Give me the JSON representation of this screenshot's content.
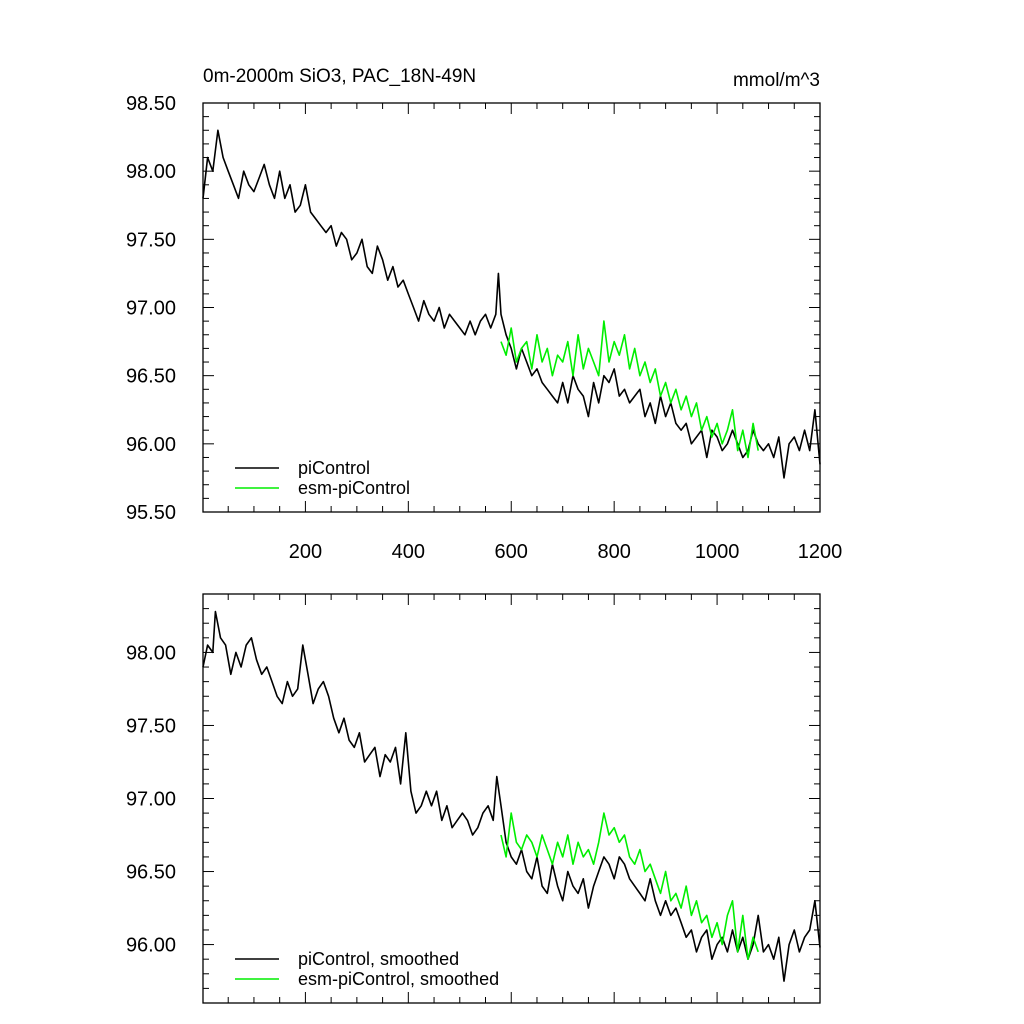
{
  "title": "0m-2000m SiO3, PAC_18N-49N",
  "units": "mmol/m^3",
  "colors": {
    "piControl": "#000000",
    "esm-piControl": "#00ee00",
    "axis": "#000000"
  },
  "chart_data": [
    {
      "type": "line",
      "panel": "top",
      "title": "0m-2000m SiO3, PAC_18N-49N",
      "units": "mmol/m^3",
      "xlim": [
        1,
        1200
      ],
      "ylim": [
        95.5,
        98.5
      ],
      "xticks": [
        200,
        400,
        600,
        800,
        1000,
        1200
      ],
      "xticklabels": [
        "200",
        "400",
        "600",
        "800",
        "1000",
        "1200"
      ],
      "yticks": [
        95.5,
        96.0,
        96.5,
        97.0,
        97.5,
        98.0,
        98.5
      ],
      "yticklabels": [
        "95.50",
        "96.00",
        "96.50",
        "97.00",
        "97.50",
        "98.00",
        "98.50"
      ],
      "legend_position": "bottom-left",
      "series": [
        {
          "name": "piControl",
          "color": "#000000",
          "x": [
            1,
            10,
            20,
            30,
            40,
            50,
            60,
            70,
            80,
            90,
            100,
            110,
            120,
            130,
            140,
            150,
            160,
            170,
            180,
            190,
            200,
            210,
            220,
            230,
            240,
            250,
            260,
            270,
            280,
            290,
            300,
            310,
            320,
            330,
            340,
            350,
            360,
            370,
            380,
            390,
            400,
            410,
            420,
            430,
            440,
            450,
            460,
            470,
            480,
            490,
            500,
            510,
            520,
            530,
            540,
            550,
            560,
            570,
            575,
            580,
            590,
            600,
            610,
            620,
            630,
            640,
            650,
            660,
            670,
            680,
            690,
            700,
            710,
            720,
            730,
            740,
            750,
            760,
            770,
            780,
            790,
            800,
            810,
            820,
            830,
            840,
            850,
            860,
            870,
            880,
            890,
            900,
            910,
            920,
            930,
            940,
            950,
            960,
            970,
            980,
            990,
            1000,
            1010,
            1020,
            1030,
            1040,
            1050,
            1060,
            1070,
            1080,
            1090,
            1100,
            1110,
            1120,
            1130,
            1140,
            1150,
            1160,
            1170,
            1180,
            1190,
            1200
          ],
          "y": [
            97.8,
            98.1,
            98.0,
            98.3,
            98.1,
            98.0,
            97.9,
            97.8,
            98.0,
            97.9,
            97.85,
            97.95,
            98.05,
            97.9,
            97.8,
            98.0,
            97.8,
            97.9,
            97.7,
            97.75,
            97.9,
            97.7,
            97.65,
            97.6,
            97.55,
            97.6,
            97.45,
            97.55,
            97.5,
            97.35,
            97.4,
            97.5,
            97.3,
            97.25,
            97.45,
            97.35,
            97.2,
            97.3,
            97.15,
            97.2,
            97.1,
            97.0,
            96.9,
            97.05,
            96.95,
            96.9,
            97.0,
            96.85,
            96.95,
            96.9,
            96.85,
            96.8,
            96.9,
            96.8,
            96.9,
            96.95,
            96.85,
            96.95,
            97.25,
            96.95,
            96.8,
            96.7,
            96.55,
            96.7,
            96.6,
            96.5,
            96.55,
            96.45,
            96.4,
            96.35,
            96.3,
            96.45,
            96.3,
            96.5,
            96.4,
            96.35,
            96.2,
            96.45,
            96.3,
            96.5,
            96.45,
            96.55,
            96.35,
            96.4,
            96.3,
            96.35,
            96.4,
            96.2,
            96.3,
            96.15,
            96.35,
            96.2,
            96.3,
            96.15,
            96.1,
            96.15,
            96.0,
            96.05,
            96.1,
            95.9,
            96.1,
            96.05,
            95.95,
            96.0,
            96.1,
            96.0,
            95.9,
            95.95,
            96.1,
            96.0,
            95.95,
            96.0,
            95.9,
            96.05,
            95.75,
            96.0,
            96.05,
            95.95,
            96.1,
            95.95,
            96.25,
            95.85
          ]
        },
        {
          "name": "esm-piControl",
          "color": "#00ee00",
          "x": [
            580,
            590,
            600,
            610,
            620,
            630,
            640,
            650,
            660,
            670,
            680,
            690,
            700,
            710,
            720,
            730,
            740,
            750,
            760,
            770,
            780,
            790,
            800,
            810,
            820,
            830,
            840,
            850,
            860,
            870,
            880,
            890,
            900,
            910,
            920,
            930,
            940,
            950,
            960,
            970,
            980,
            990,
            1000,
            1010,
            1020,
            1030,
            1040,
            1050,
            1060,
            1070,
            1080
          ],
          "y": [
            96.75,
            96.65,
            96.85,
            96.6,
            96.7,
            96.75,
            96.55,
            96.8,
            96.6,
            96.7,
            96.5,
            96.65,
            96.6,
            96.75,
            96.5,
            96.8,
            96.55,
            96.7,
            96.6,
            96.5,
            96.9,
            96.6,
            96.75,
            96.65,
            96.8,
            96.55,
            96.7,
            96.5,
            96.6,
            96.45,
            96.55,
            96.35,
            96.45,
            96.3,
            96.4,
            96.25,
            96.35,
            96.2,
            96.3,
            96.1,
            96.2,
            96.05,
            96.15,
            96.0,
            96.1,
            96.25,
            95.95,
            96.1,
            95.9,
            96.15,
            95.95
          ]
        }
      ]
    },
    {
      "type": "line",
      "panel": "bottom",
      "xlim": [
        1,
        1200
      ],
      "ylim": [
        95.6,
        98.4
      ],
      "xticks": [
        200,
        400,
        600,
        800,
        1000,
        1200
      ],
      "yticks": [
        96.0,
        96.5,
        97.0,
        97.5,
        98.0
      ],
      "yticklabels": [
        "96.00",
        "96.50",
        "97.00",
        "97.50",
        "98.00"
      ],
      "legend_position": "bottom-left",
      "series": [
        {
          "name": "piControl, smoothed",
          "color": "#000000",
          "x": [
            1,
            10,
            20,
            25,
            35,
            45,
            55,
            65,
            75,
            85,
            95,
            105,
            115,
            125,
            135,
            145,
            155,
            165,
            175,
            185,
            195,
            205,
            215,
            225,
            235,
            245,
            255,
            265,
            275,
            285,
            295,
            305,
            315,
            325,
            335,
            345,
            355,
            365,
            375,
            385,
            395,
            405,
            415,
            425,
            435,
            445,
            455,
            465,
            475,
            485,
            495,
            505,
            515,
            525,
            535,
            545,
            555,
            565,
            572,
            580,
            590,
            600,
            610,
            620,
            630,
            640,
            650,
            660,
            670,
            680,
            690,
            700,
            710,
            720,
            730,
            740,
            750,
            760,
            770,
            780,
            790,
            800,
            810,
            820,
            830,
            840,
            850,
            860,
            870,
            880,
            890,
            900,
            910,
            920,
            930,
            940,
            950,
            960,
            970,
            980,
            990,
            1000,
            1010,
            1020,
            1030,
            1040,
            1050,
            1060,
            1070,
            1080,
            1090,
            1100,
            1110,
            1120,
            1130,
            1140,
            1150,
            1160,
            1170,
            1180,
            1190,
            1200
          ],
          "y": [
            97.9,
            98.05,
            98.0,
            98.28,
            98.1,
            98.05,
            97.85,
            98.0,
            97.9,
            98.05,
            98.1,
            97.95,
            97.85,
            97.9,
            97.8,
            97.7,
            97.65,
            97.8,
            97.7,
            97.75,
            98.05,
            97.85,
            97.65,
            97.75,
            97.8,
            97.7,
            97.55,
            97.45,
            97.55,
            97.4,
            97.35,
            97.45,
            97.25,
            97.3,
            97.35,
            97.15,
            97.3,
            97.25,
            97.35,
            97.1,
            97.45,
            97.05,
            96.9,
            96.95,
            97.05,
            96.95,
            97.05,
            96.85,
            96.95,
            96.8,
            96.85,
            96.9,
            96.85,
            96.75,
            96.8,
            96.9,
            96.95,
            96.85,
            97.15,
            96.95,
            96.7,
            96.6,
            96.55,
            96.65,
            96.5,
            96.45,
            96.6,
            96.4,
            96.35,
            96.55,
            96.4,
            96.3,
            96.5,
            96.4,
            96.35,
            96.45,
            96.25,
            96.4,
            96.5,
            96.6,
            96.55,
            96.45,
            96.6,
            96.55,
            96.45,
            96.4,
            96.35,
            96.3,
            96.45,
            96.3,
            96.2,
            96.3,
            96.2,
            96.25,
            96.15,
            96.05,
            96.1,
            95.95,
            96.05,
            96.1,
            95.9,
            96.0,
            96.05,
            95.95,
            96.1,
            95.95,
            96.05,
            95.9,
            96.0,
            96.2,
            95.95,
            96.0,
            95.9,
            96.05,
            95.75,
            96.0,
            96.1,
            95.95,
            96.05,
            96.1,
            96.3,
            95.98
          ]
        },
        {
          "name": "esm-piControl, smoothed",
          "color": "#00ee00",
          "x": [
            580,
            590,
            600,
            610,
            620,
            630,
            640,
            650,
            660,
            670,
            680,
            690,
            700,
            710,
            720,
            730,
            740,
            750,
            760,
            770,
            780,
            790,
            800,
            810,
            820,
            830,
            840,
            850,
            860,
            870,
            880,
            890,
            900,
            910,
            920,
            930,
            940,
            950,
            960,
            970,
            980,
            990,
            1000,
            1010,
            1020,
            1030,
            1040,
            1050,
            1060,
            1070,
            1080
          ],
          "y": [
            96.75,
            96.6,
            96.9,
            96.7,
            96.65,
            96.75,
            96.7,
            96.6,
            96.75,
            96.65,
            96.55,
            96.7,
            96.6,
            96.75,
            96.55,
            96.7,
            96.6,
            96.65,
            96.55,
            96.7,
            96.9,
            96.75,
            96.8,
            96.7,
            96.75,
            96.6,
            96.55,
            96.65,
            96.5,
            96.55,
            96.45,
            96.35,
            96.5,
            96.3,
            96.35,
            96.25,
            96.4,
            96.2,
            96.3,
            96.15,
            96.2,
            96.05,
            96.15,
            96.0,
            96.2,
            96.3,
            95.95,
            96.2,
            95.9,
            96.05,
            95.95
          ]
        }
      ]
    }
  ]
}
